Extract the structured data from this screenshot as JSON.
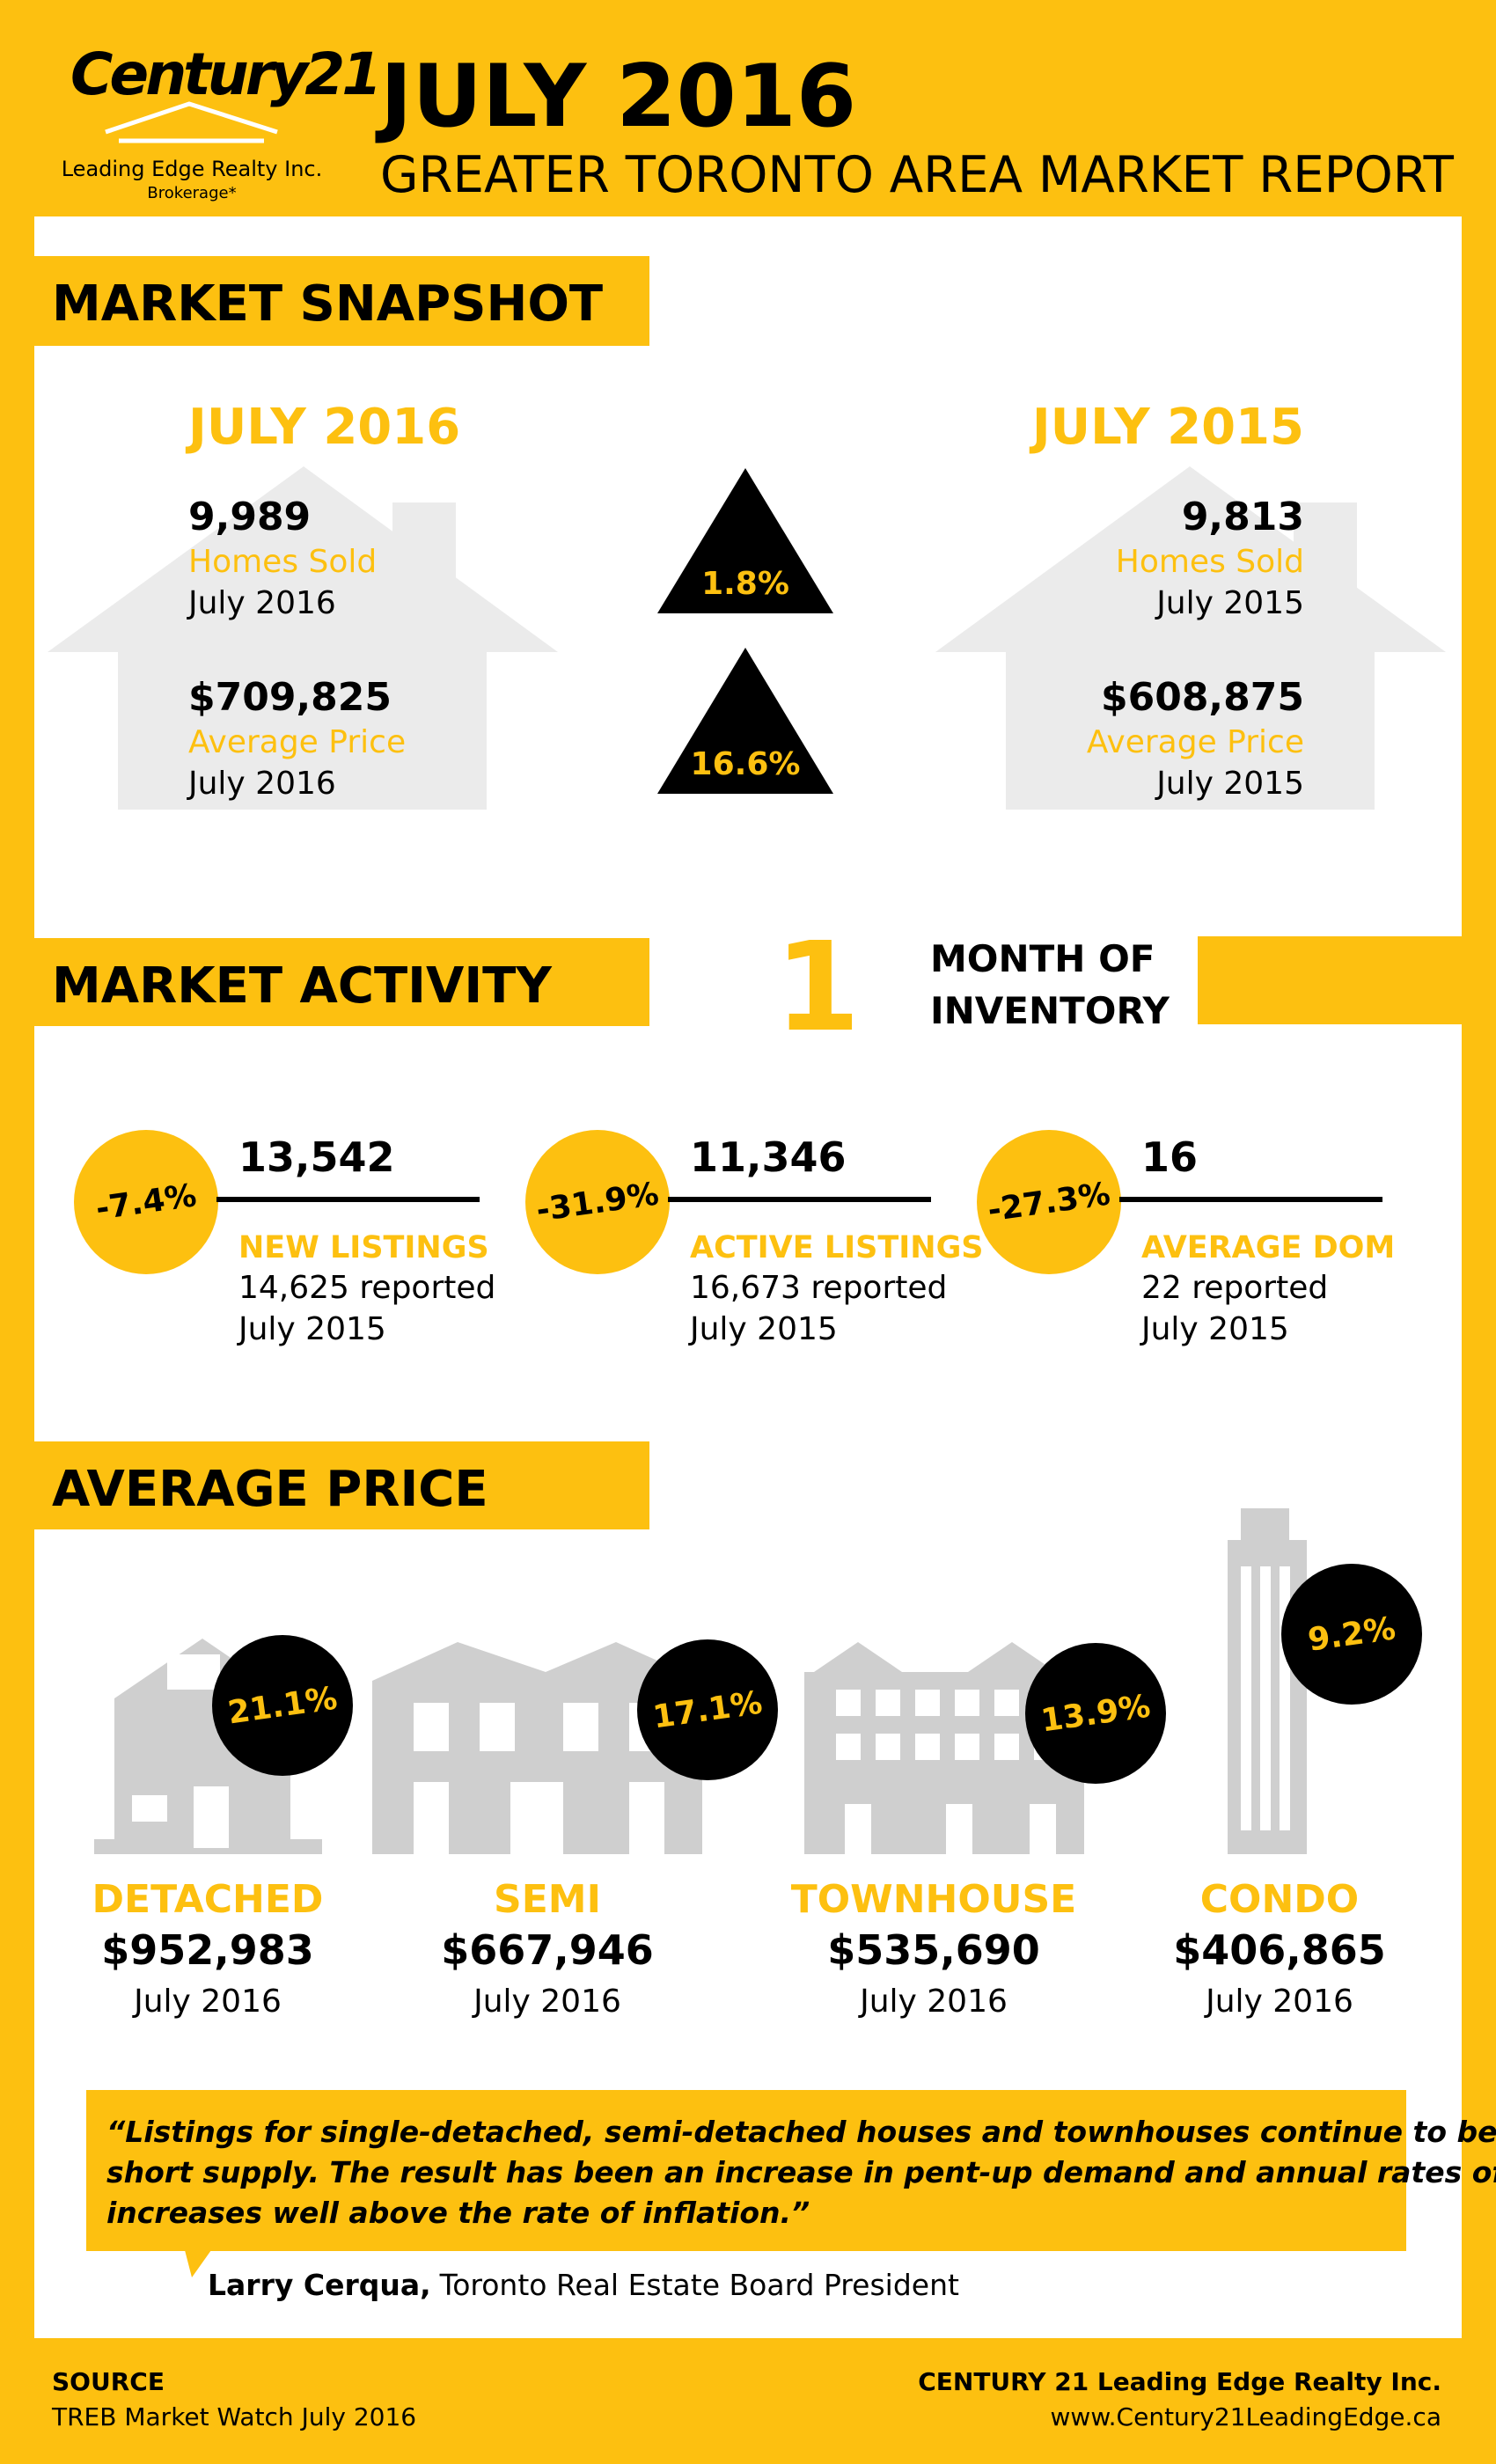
{
  "header": {
    "logo": {
      "brand": "Century21",
      "company": "Leading Edge Realty Inc.",
      "brokerage": "Brokerage*"
    },
    "title": "JULY 2016",
    "subtitle": "GREATER TORONTO AREA MARKET REPORT"
  },
  "snapshot": {
    "heading": "MARKET SNAPSHOT",
    "current": {
      "period": "JULY 2016",
      "items": [
        {
          "value": "9,989",
          "label": "Homes Sold",
          "date": "July 2016"
        },
        {
          "value": "$709,825",
          "label": "Average Price",
          "date": "July 2016"
        }
      ]
    },
    "previous": {
      "period": "JULY 2015",
      "items": [
        {
          "value": "9,813",
          "label": "Homes Sold",
          "date": "July 2015"
        },
        {
          "value": "$608,875",
          "label": "Average Price",
          "date": "July 2015"
        }
      ]
    },
    "changes": [
      "1.8%",
      "16.6%"
    ]
  },
  "activity": {
    "heading": "MARKET ACTIVITY",
    "inventory": {
      "value": "1",
      "label_lines": [
        "MONTH OF",
        "INVENTORY"
      ]
    },
    "items": [
      {
        "change": "-7.4%",
        "value": "13,542",
        "label": "NEW LISTINGS",
        "reported": "14,625 reported",
        "date": "July 2015"
      },
      {
        "change": "-31.9%",
        "value": "11,346",
        "label": "ACTIVE LISTINGS",
        "reported": "16,673 reported",
        "date": "July 2015"
      },
      {
        "change": "-27.3%",
        "value": "16",
        "label": "AVERAGE DOM",
        "reported": "22 reported",
        "date": "July 2015"
      }
    ]
  },
  "average_price": {
    "heading": "AVERAGE PRICE",
    "items": [
      {
        "change": "21.1%",
        "type": "DETACHED",
        "price": "$952,983",
        "date": "July 2016"
      },
      {
        "change": "17.1%",
        "type": "SEMI",
        "price": "$667,946",
        "date": "July 2016"
      },
      {
        "change": "13.9%",
        "type": "TOWNHOUSE",
        "price": "$535,690",
        "date": "July 2016"
      },
      {
        "change": "9.2%",
        "type": "CONDO",
        "price": "$406,865",
        "date": "July 2016"
      }
    ]
  },
  "quote": {
    "lines": [
      "“Listings for single-detached, semi-detached houses and townhouses continue to be in",
      "short supply. The result has been an increase in pent-up demand and annual rates of price",
      "increases well above the rate of inflation.”"
    ],
    "author": "Larry Cerqua,",
    "role": "Toronto Real Estate Board President"
  },
  "footer": {
    "source_label": "SOURCE",
    "source": "TREB Market Watch July 2016",
    "company": "CENTURY 21 Leading Edge Realty Inc.",
    "website": "www.Century21LeadingEdge.ca"
  }
}
